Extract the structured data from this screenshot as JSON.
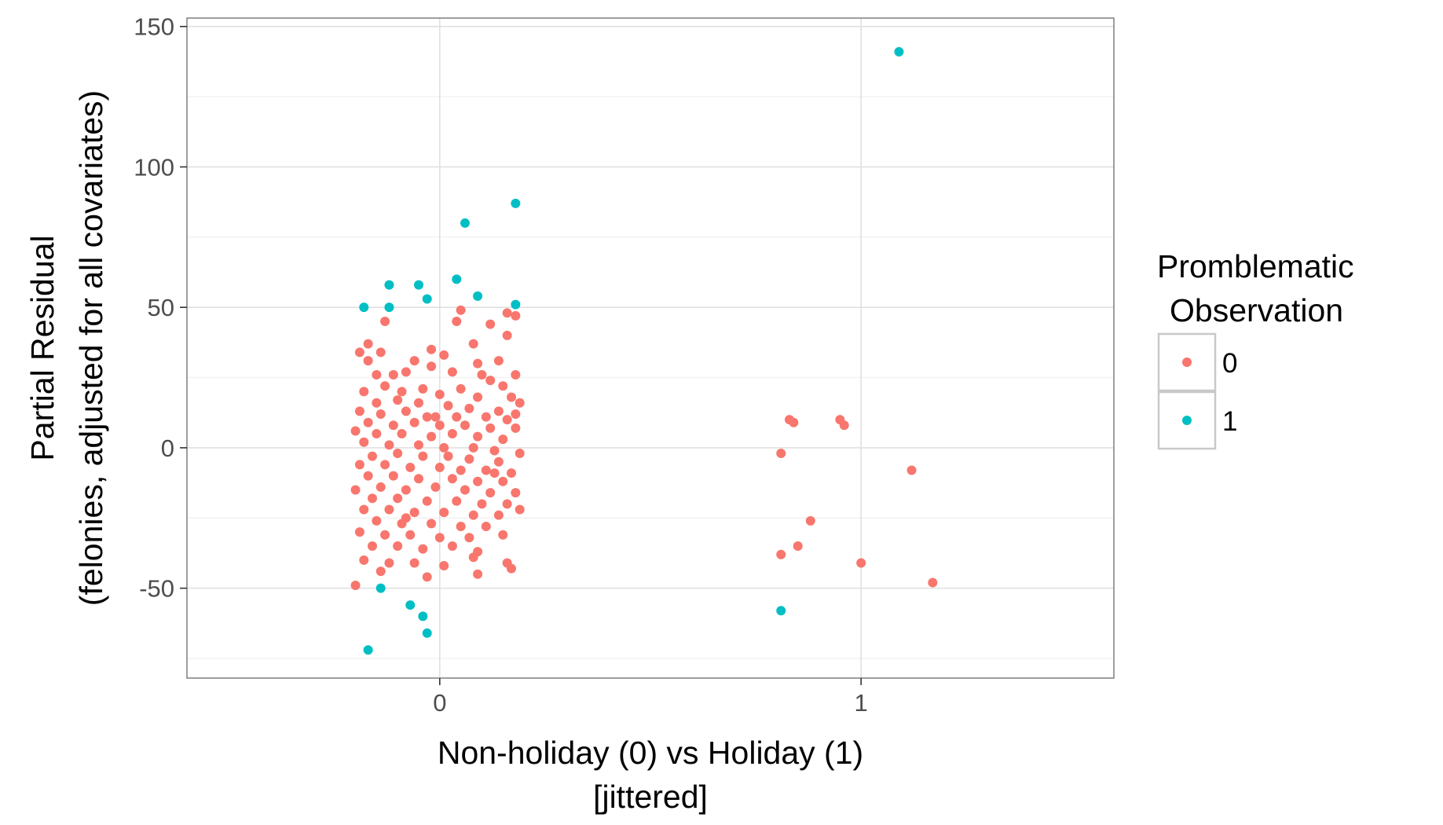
{
  "chart_data": {
    "type": "scatter",
    "xlabel": [
      "Non-holiday (0) vs Holiday (1)",
      "[jittered]"
    ],
    "ylabel": [
      "Partial Residual",
      "(felonies, adjusted for all covariates)"
    ],
    "xlim": [
      -0.6,
      1.6
    ],
    "ylim": [
      -82,
      153
    ],
    "x_ticks": [
      0,
      1
    ],
    "x_tick_labels": [
      "0",
      "1"
    ],
    "y_ticks": [
      -50,
      0,
      50,
      100,
      150
    ],
    "y_tick_labels": [
      "-50",
      "0",
      "50",
      "100",
      "150"
    ],
    "y_minor_ticks": [
      -75,
      -25,
      25,
      75,
      125
    ],
    "grid": true,
    "legend": {
      "title": [
        "Promblematic",
        "Observation"
      ],
      "placement": "right",
      "entries": [
        {
          "label": "0",
          "color": "#F8766D"
        },
        {
          "label": "1",
          "color": "#00BFC4"
        }
      ]
    },
    "series": [
      {
        "name": "0",
        "color": "#F8766D",
        "points": [
          [
            0.83,
            10
          ],
          [
            0.84,
            9
          ],
          [
            0.95,
            10
          ],
          [
            0.96,
            8
          ],
          [
            0.81,
            -2
          ],
          [
            1.12,
            -8
          ],
          [
            0.88,
            -26
          ],
          [
            0.85,
            -35
          ],
          [
            0.81,
            -38
          ],
          [
            1.0,
            -41
          ],
          [
            1.17,
            -48
          ],
          [
            0.05,
            49
          ],
          [
            0.12,
            44
          ],
          [
            0.16,
            48
          ],
          [
            0.18,
            47
          ],
          [
            0.16,
            40
          ],
          [
            0.08,
            37
          ],
          [
            -0.17,
            37
          ],
          [
            -0.19,
            34
          ],
          [
            -0.14,
            34
          ],
          [
            -0.02,
            35
          ],
          [
            0.01,
            33
          ],
          [
            -0.13,
            45
          ],
          [
            0.04,
            45
          ],
          [
            -0.17,
            31
          ],
          [
            -0.06,
            31
          ],
          [
            0.09,
            30
          ],
          [
            -0.02,
            29
          ],
          [
            0.14,
            31
          ],
          [
            -0.15,
            26
          ],
          [
            -0.11,
            26
          ],
          [
            -0.08,
            27
          ],
          [
            0.03,
            27
          ],
          [
            0.18,
            26
          ],
          [
            0.12,
            24
          ],
          [
            0.15,
            22
          ],
          [
            -0.18,
            20
          ],
          [
            -0.13,
            22
          ],
          [
            -0.09,
            20
          ],
          [
            -0.04,
            21
          ],
          [
            0.0,
            19
          ],
          [
            0.05,
            21
          ],
          [
            0.09,
            18
          ],
          [
            0.17,
            18
          ],
          [
            0.19,
            16
          ],
          [
            -0.15,
            16
          ],
          [
            -0.1,
            17
          ],
          [
            -0.05,
            16
          ],
          [
            0.02,
            15
          ],
          [
            0.07,
            14
          ],
          [
            0.14,
            13
          ],
          [
            -0.19,
            13
          ],
          [
            -0.14,
            12
          ],
          [
            -0.08,
            13
          ],
          [
            -0.03,
            11
          ],
          [
            0.04,
            11
          ],
          [
            0.11,
            11
          ],
          [
            0.16,
            10
          ],
          [
            -0.17,
            9
          ],
          [
            -0.11,
            8
          ],
          [
            -0.06,
            9
          ],
          [
            0.0,
            8
          ],
          [
            0.06,
            8
          ],
          [
            0.12,
            7
          ],
          [
            0.18,
            7
          ],
          [
            -0.2,
            6
          ],
          [
            -0.15,
            5
          ],
          [
            -0.09,
            5
          ],
          [
            -0.02,
            4
          ],
          [
            0.03,
            5
          ],
          [
            0.09,
            4
          ],
          [
            0.15,
            3
          ],
          [
            -0.18,
            2
          ],
          [
            -0.12,
            1
          ],
          [
            -0.05,
            1
          ],
          [
            0.01,
            0
          ],
          [
            0.08,
            0
          ],
          [
            0.13,
            -1
          ],
          [
            0.19,
            -2
          ],
          [
            -0.16,
            -3
          ],
          [
            -0.1,
            -2
          ],
          [
            -0.04,
            -3
          ],
          [
            0.02,
            -3
          ],
          [
            0.07,
            -4
          ],
          [
            0.14,
            -5
          ],
          [
            -0.19,
            -6
          ],
          [
            -0.13,
            -6
          ],
          [
            -0.07,
            -7
          ],
          [
            0.0,
            -7
          ],
          [
            0.05,
            -8
          ],
          [
            0.11,
            -8
          ],
          [
            0.17,
            -9
          ],
          [
            -0.17,
            -10
          ],
          [
            -0.11,
            -10
          ],
          [
            -0.05,
            -11
          ],
          [
            0.03,
            -11
          ],
          [
            0.09,
            -12
          ],
          [
            0.15,
            -12
          ],
          [
            -0.2,
            -15
          ],
          [
            -0.14,
            -14
          ],
          [
            -0.08,
            -15
          ],
          [
            -0.01,
            -14
          ],
          [
            0.06,
            -15
          ],
          [
            0.12,
            -16
          ],
          [
            0.18,
            -16
          ],
          [
            -0.16,
            -18
          ],
          [
            -0.1,
            -18
          ],
          [
            -0.03,
            -19
          ],
          [
            0.04,
            -19
          ],
          [
            0.1,
            -20
          ],
          [
            0.16,
            -20
          ],
          [
            -0.18,
            -22
          ],
          [
            -0.12,
            -22
          ],
          [
            -0.06,
            -23
          ],
          [
            0.01,
            -23
          ],
          [
            0.08,
            -24
          ],
          [
            0.14,
            -24
          ],
          [
            0.19,
            -22
          ],
          [
            -0.15,
            -26
          ],
          [
            -0.09,
            -27
          ],
          [
            -0.02,
            -27
          ],
          [
            0.05,
            -28
          ],
          [
            0.11,
            -28
          ],
          [
            -0.19,
            -30
          ],
          [
            -0.13,
            -31
          ],
          [
            -0.07,
            -31
          ],
          [
            0.0,
            -32
          ],
          [
            0.07,
            -32
          ],
          [
            0.15,
            -31
          ],
          [
            -0.16,
            -35
          ],
          [
            -0.1,
            -35
          ],
          [
            -0.04,
            -36
          ],
          [
            0.03,
            -35
          ],
          [
            0.09,
            -37
          ],
          [
            -0.18,
            -40
          ],
          [
            -0.12,
            -41
          ],
          [
            -0.06,
            -41
          ],
          [
            0.01,
            -42
          ],
          [
            0.08,
            -39
          ],
          [
            0.16,
            -41
          ],
          [
            0.17,
            -43
          ],
          [
            -0.14,
            -44
          ],
          [
            -0.03,
            -46
          ],
          [
            0.09,
            -45
          ],
          [
            -0.2,
            -49
          ],
          [
            -0.08,
            -25
          ],
          [
            0.13,
            -9
          ],
          [
            -0.01,
            11
          ],
          [
            0.1,
            26
          ],
          [
            0.18,
            12
          ]
        ]
      },
      {
        "name": "1",
        "color": "#00BFC4",
        "points": [
          [
            1.09,
            141
          ],
          [
            0.18,
            87
          ],
          [
            0.06,
            80
          ],
          [
            0.04,
            60
          ],
          [
            -0.05,
            58
          ],
          [
            -0.12,
            58
          ],
          [
            0.09,
            54
          ],
          [
            -0.03,
            53
          ],
          [
            -0.18,
            50
          ],
          [
            -0.12,
            50
          ],
          [
            0.18,
            51
          ],
          [
            -0.14,
            -50
          ],
          [
            -0.07,
            -56
          ],
          [
            -0.04,
            -60
          ],
          [
            -0.03,
            -66
          ],
          [
            -0.17,
            -72
          ],
          [
            0.81,
            -58
          ]
        ]
      }
    ]
  }
}
